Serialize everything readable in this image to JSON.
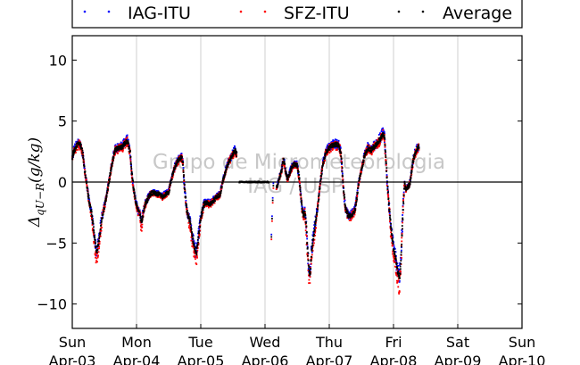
{
  "chart_data": {
    "type": "scatter",
    "ylabel": "Δq_{U−R}(g/kg)",
    "ylim": [
      -12,
      12
    ],
    "yticks": [
      10,
      5,
      0,
      -5,
      -10
    ],
    "xlim": [
      0,
      7
    ],
    "xticks": [
      {
        "x": 0,
        "day": "Sun",
        "date": "Apr-03"
      },
      {
        "x": 1,
        "day": "Mon",
        "date": "Apr-04"
      },
      {
        "x": 2,
        "day": "Tue",
        "date": "Apr-05"
      },
      {
        "x": 3,
        "day": "Wed",
        "date": "Apr-06"
      },
      {
        "x": 4,
        "day": "Thu",
        "date": "Apr-07"
      },
      {
        "x": 5,
        "day": "Fri",
        "date": "Apr-08"
      },
      {
        "x": 6,
        "day": "Sat",
        "date": "Apr-09"
      },
      {
        "x": 7,
        "day": "Sun",
        "date": "Apr-10"
      }
    ],
    "grid_x": true,
    "zero_line": true,
    "legend": {
      "placement": "top",
      "entries": [
        {
          "name": "IAG-ITU",
          "color": "#0000ff"
        },
        {
          "name": "SFZ-ITU",
          "color": "#ff0000"
        },
        {
          "name": "Average",
          "color": "#000000"
        }
      ]
    },
    "watermark": [
      "Grupo de Micrometeorologia",
      "IAG / USP"
    ],
    "average_profile": [
      [
        0.0,
        2.0
      ],
      [
        0.03,
        2.6
      ],
      [
        0.07,
        3.0
      ],
      [
        0.1,
        3.2
      ],
      [
        0.13,
        3.0
      ],
      [
        0.15,
        2.6
      ],
      [
        0.17,
        2.0
      ],
      [
        0.19,
        1.0
      ],
      [
        0.22,
        0.0
      ],
      [
        0.25,
        -1.2
      ],
      [
        0.3,
        -2.6
      ],
      [
        0.33,
        -3.8
      ],
      [
        0.36,
        -5.2
      ],
      [
        0.38,
        -5.8
      ],
      [
        0.4,
        -5.2
      ],
      [
        0.43,
        -4.2
      ],
      [
        0.46,
        -3.0
      ],
      [
        0.5,
        -2.0
      ],
      [
        0.55,
        -0.6
      ],
      [
        0.6,
        1.0
      ],
      [
        0.63,
        1.8
      ],
      [
        0.66,
        2.6
      ],
      [
        0.72,
        2.8
      ],
      [
        0.78,
        2.9
      ],
      [
        0.82,
        3.2
      ],
      [
        0.86,
        3.4
      ],
      [
        0.9,
        2.4
      ],
      [
        0.92,
        1.0
      ],
      [
        0.95,
        -0.4
      ],
      [
        0.98,
        -1.5
      ],
      [
        1.02,
        -2.3
      ],
      [
        1.05,
        -2.6
      ],
      [
        1.08,
        -3.4
      ],
      [
        1.1,
        -2.6
      ],
      [
        1.13,
        -1.9
      ],
      [
        1.18,
        -1.3
      ],
      [
        1.23,
        -0.9
      ],
      [
        1.28,
        -0.9
      ],
      [
        1.35,
        -1.0
      ],
      [
        1.4,
        -1.2
      ],
      [
        1.45,
        -1.0
      ],
      [
        1.5,
        -0.8
      ],
      [
        1.55,
        0.4
      ],
      [
        1.6,
        1.3
      ],
      [
        1.65,
        1.8
      ],
      [
        1.7,
        2.1
      ],
      [
        1.72,
        1.6
      ],
      [
        1.74,
        0.0
      ],
      [
        1.76,
        -1.2
      ],
      [
        1.78,
        -2.3
      ],
      [
        1.8,
        -2.8
      ],
      [
        1.83,
        -3.2
      ],
      [
        1.86,
        -4.2
      ],
      [
        1.9,
        -5.4
      ],
      [
        1.93,
        -5.9
      ],
      [
        1.96,
        -4.6
      ],
      [
        2.0,
        -2.9
      ],
      [
        2.05,
        -1.8
      ],
      [
        2.1,
        -1.7
      ],
      [
        2.15,
        -1.8
      ],
      [
        2.2,
        -1.5
      ],
      [
        2.25,
        -1.2
      ],
      [
        2.3,
        -1.0
      ],
      [
        2.35,
        0.2
      ],
      [
        2.4,
        1.2
      ],
      [
        2.45,
        1.8
      ],
      [
        2.5,
        2.3
      ],
      [
        2.53,
        2.6
      ],
      [
        2.56,
        2.2
      ]
    ],
    "flat_segment": [
      2.6,
      3.06,
      0
    ],
    "thu_gap_points": [
      [
        3.1,
        -4.5
      ],
      [
        3.11,
        -3.0
      ],
      [
        3.12,
        -1.5
      ],
      [
        3.13,
        -0.3
      ]
    ],
    "average_profile_2": [
      [
        3.18,
        -0.5
      ],
      [
        3.22,
        0.3
      ],
      [
        3.26,
        1.0
      ],
      [
        3.28,
        1.8
      ],
      [
        3.3,
        1.6
      ],
      [
        3.32,
        0.8
      ],
      [
        3.35,
        0.2
      ],
      [
        3.4,
        1.0
      ],
      [
        3.45,
        1.5
      ],
      [
        3.5,
        1.4
      ],
      [
        3.53,
        0.4
      ],
      [
        3.55,
        -0.8
      ],
      [
        3.58,
        -2.3
      ],
      [
        3.6,
        -2.8
      ],
      [
        3.62,
        -2.4
      ],
      [
        3.64,
        -3.4
      ],
      [
        3.66,
        -5.5
      ],
      [
        3.68,
        -7.0
      ],
      [
        3.7,
        -7.6
      ],
      [
        3.72,
        -6.0
      ],
      [
        3.74,
        -5.0
      ],
      [
        3.78,
        -3.5
      ],
      [
        3.82,
        -2.0
      ],
      [
        3.86,
        0.0
      ],
      [
        3.9,
        1.5
      ],
      [
        3.95,
        2.5
      ],
      [
        4.0,
        2.8
      ],
      [
        4.05,
        3.0
      ],
      [
        4.1,
        3.1
      ],
      [
        4.15,
        3.0
      ],
      [
        4.18,
        2.4
      ],
      [
        4.2,
        1.0
      ],
      [
        4.22,
        -0.5
      ],
      [
        4.25,
        -2.2
      ],
      [
        4.3,
        -2.8
      ],
      [
        4.35,
        -2.7
      ],
      [
        4.4,
        -2.3
      ],
      [
        4.43,
        -1.2
      ],
      [
        4.46,
        0.0
      ],
      [
        4.5,
        1.0
      ],
      [
        4.55,
        2.2
      ],
      [
        4.6,
        2.8
      ],
      [
        4.65,
        2.6
      ],
      [
        4.7,
        2.9
      ],
      [
        4.75,
        3.2
      ],
      [
        4.8,
        3.6
      ],
      [
        4.84,
        4.0
      ],
      [
        4.86,
        3.6
      ],
      [
        4.88,
        2.0
      ],
      [
        4.9,
        0.0
      ],
      [
        4.93,
        -2.0
      ],
      [
        4.96,
        -3.8
      ],
      [
        5.0,
        -5.5
      ],
      [
        5.03,
        -6.2
      ],
      [
        5.06,
        -7.2
      ],
      [
        5.09,
        -8.0
      ],
      [
        5.11,
        -6.8
      ],
      [
        5.13,
        -4.5
      ],
      [
        5.15,
        -2.0
      ],
      [
        5.17,
        0.0
      ],
      [
        5.19,
        -0.6
      ],
      [
        5.22,
        -0.4
      ],
      [
        5.25,
        -0.2
      ],
      [
        5.27,
        0.4
      ],
      [
        5.3,
        1.6
      ],
      [
        5.33,
        2.3
      ],
      [
        5.37,
        2.7
      ],
      [
        5.4,
        3.0
      ]
    ]
  }
}
